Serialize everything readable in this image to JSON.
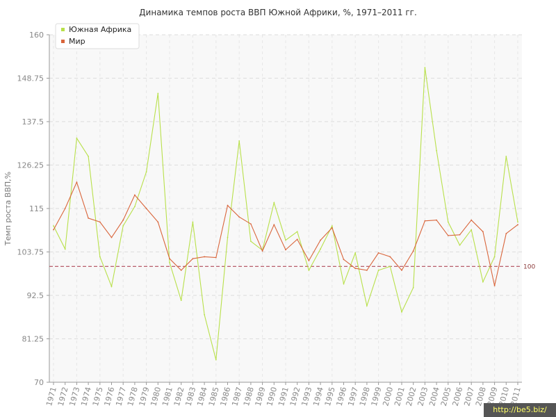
{
  "chart_data": {
    "type": "line",
    "title": "Динамика темпов роста ВВП Южной Африки, %, 1971–2011 гг.",
    "xlabel": "",
    "ylabel": "Темп роста ВВП,%",
    "ylim": [
      70,
      160
    ],
    "yticks": [
      "70",
      "81.25",
      "92.5",
      "103.75",
      "115",
      "126.25",
      "137.5",
      "148.75",
      "160"
    ],
    "yticks_values": [
      70,
      81.25,
      92.5,
      103.75,
      115,
      126.25,
      137.5,
      148.75,
      160
    ],
    "x": [
      "1971",
      "1972",
      "1973",
      "1974",
      "1975",
      "1976",
      "1977",
      "1978",
      "1979",
      "1980",
      "1981",
      "1982",
      "1983",
      "1984",
      "1985",
      "1986",
      "1987",
      "1988",
      "1989",
      "1990",
      "1991",
      "1992",
      "1993",
      "1994",
      "1995",
      "1996",
      "1997",
      "1998",
      "1999",
      "2000",
      "2001",
      "2002",
      "2003",
      "2004",
      "2005",
      "2006",
      "2007",
      "2008",
      "2009",
      "2010",
      "2011"
    ],
    "series": [
      {
        "name": "Южная Африка",
        "color": "#b8e04a",
        "values": [
          110.5,
          104.5,
          133.2,
          128.5,
          102.5,
          94.8,
          110.5,
          115.5,
          124.5,
          144.8,
          101.0,
          91.2,
          111.5,
          87.5,
          75.8,
          107.5,
          132.5,
          106.5,
          104.2,
          116.5,
          106.8,
          109.0,
          99.0,
          104.5,
          110.5,
          95.5,
          103.5,
          89.8,
          99.0,
          100.0,
          88.2,
          94.5,
          151.5,
          130.0,
          111.5,
          105.5,
          109.5,
          96.0,
          102.5,
          128.5,
          111.5
        ]
      },
      {
        "name": "Мир",
        "color": "#d9653b",
        "values": [
          109.5,
          115.0,
          121.8,
          112.5,
          111.5,
          107.5,
          112.0,
          118.5,
          115.0,
          111.5,
          102.0,
          99.0,
          102.0,
          102.5,
          102.3,
          115.8,
          112.8,
          111.0,
          104.0,
          110.8,
          104.3,
          107.0,
          101.5,
          106.8,
          110.0,
          101.8,
          99.5,
          99.0,
          103.5,
          102.5,
          99.0,
          104.0,
          111.8,
          112.0,
          108.0,
          108.2,
          112.0,
          109.0,
          95.0,
          108.5,
          110.8
        ]
      }
    ],
    "reference_line": {
      "value": 100,
      "label": "100",
      "color": "#b04a5a"
    },
    "grid": true,
    "legend_placement": "top-left"
  },
  "watermark": "http://be5.biz/"
}
